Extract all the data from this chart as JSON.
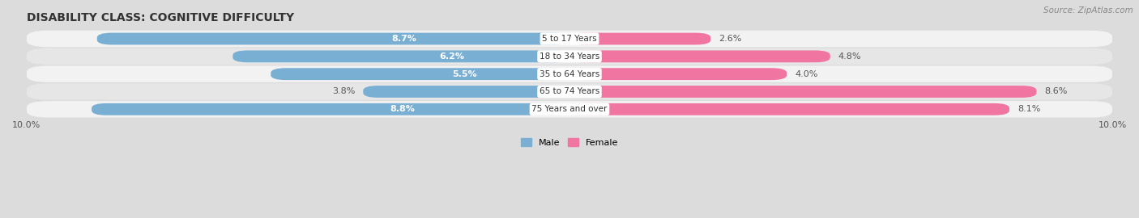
{
  "title": "DISABILITY CLASS: COGNITIVE DIFFICULTY",
  "source": "Source: ZipAtlas.com",
  "categories": [
    "5 to 17 Years",
    "18 to 34 Years",
    "35 to 64 Years",
    "65 to 74 Years",
    "75 Years and over"
  ],
  "male_values": [
    8.7,
    6.2,
    5.5,
    3.8,
    8.8
  ],
  "female_values": [
    2.6,
    4.8,
    4.0,
    8.6,
    8.1
  ],
  "male_color": "#7aafd4",
  "male_color_light": "#aac8e4",
  "female_color": "#f075a0",
  "female_color_light": "#f8aac4",
  "axis_max": 10.0,
  "bg_color": "#dcdcdc",
  "row_colors": [
    "#f2f2f2",
    "#e6e6e6",
    "#f2f2f2",
    "#e6e6e6",
    "#f2f2f2"
  ],
  "title_fontsize": 10,
  "label_fontsize": 8,
  "tick_fontsize": 8,
  "source_fontsize": 7.5,
  "inside_label_threshold": 5.5
}
